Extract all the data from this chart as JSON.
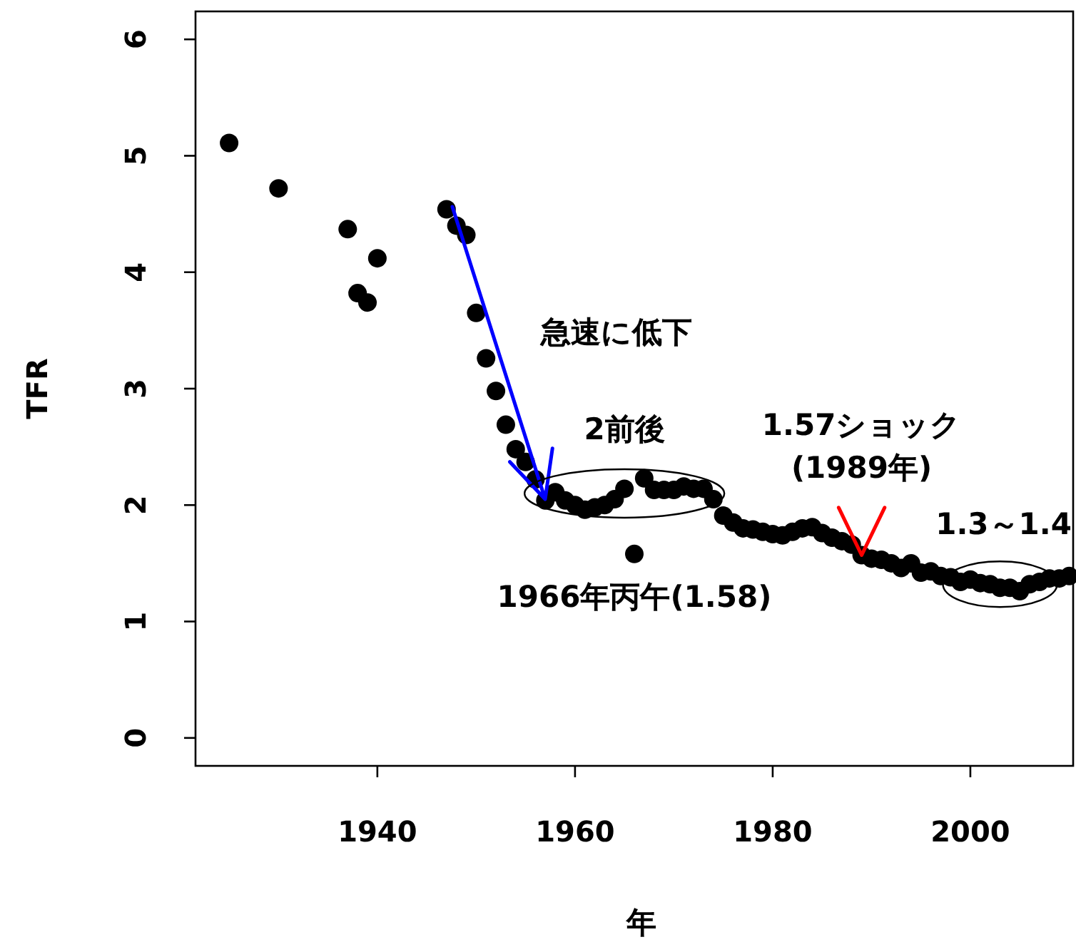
{
  "chart_data": {
    "type": "scatter",
    "xlabel": "年",
    "ylabel": "TFR",
    "x": [
      1925,
      1930,
      1937,
      1938,
      1939,
      1940,
      1947,
      1948,
      1949,
      1950,
      1951,
      1952,
      1953,
      1954,
      1955,
      1956,
      1957,
      1958,
      1959,
      1960,
      1961,
      1962,
      1963,
      1964,
      1965,
      1966,
      1967,
      1968,
      1969,
      1970,
      1971,
      1972,
      1973,
      1974,
      1975,
      1976,
      1977,
      1978,
      1979,
      1980,
      1981,
      1982,
      1983,
      1984,
      1985,
      1986,
      1987,
      1988,
      1989,
      1990,
      1991,
      1992,
      1993,
      1994,
      1995,
      1996,
      1997,
      1998,
      1999,
      2000,
      2001,
      2002,
      2003,
      2004,
      2005,
      2006,
      2007,
      2008,
      2009,
      2010
    ],
    "values": [
      5.11,
      4.72,
      4.37,
      3.82,
      3.74,
      4.12,
      4.54,
      4.4,
      4.32,
      3.65,
      3.26,
      2.98,
      2.69,
      2.48,
      2.37,
      2.22,
      2.04,
      2.11,
      2.04,
      2.0,
      1.96,
      1.98,
      2.0,
      2.05,
      2.14,
      1.58,
      2.23,
      2.13,
      2.13,
      2.13,
      2.16,
      2.14,
      2.14,
      2.05,
      1.91,
      1.85,
      1.8,
      1.79,
      1.77,
      1.75,
      1.74,
      1.77,
      1.8,
      1.81,
      1.76,
      1.72,
      1.69,
      1.66,
      1.57,
      1.54,
      1.53,
      1.5,
      1.46,
      1.5,
      1.42,
      1.43,
      1.39,
      1.38,
      1.34,
      1.36,
      1.33,
      1.32,
      1.29,
      1.29,
      1.26,
      1.32,
      1.34,
      1.37,
      1.37,
      1.39
    ],
    "color": "#000000",
    "marker": "circle",
    "xlim": [
      1921.6,
      2010.4
    ],
    "ylim": [
      -0.24,
      6.24
    ],
    "xticks": [
      1940,
      1960,
      1980,
      2000
    ],
    "yticks": [
      0,
      1,
      2,
      3,
      4,
      5,
      6
    ],
    "annotations": [
      "急速に低下",
      {
        "text": "2前後",
        "x": 1965,
        "y": 2.1
      },
      {
        "text": "1.57ショック\n(1989年)",
        "x": 1989,
        "y": 1.57
      },
      {
        "text": "1966年丙午(1.58)",
        "x": 1966,
        "y": 1.58
      },
      {
        "text": "1.3～1.4",
        "x": 2003,
        "y": 1.32
      }
    ]
  }
}
